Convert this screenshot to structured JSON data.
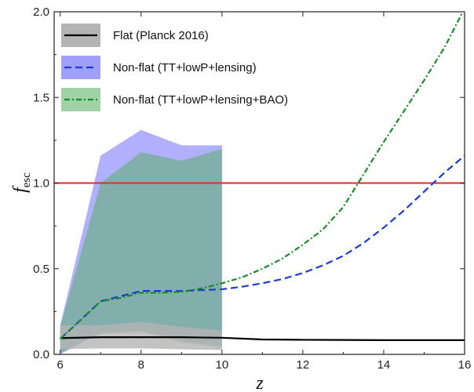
{
  "chart_data": {
    "type": "line",
    "xlabel": "z",
    "ylabel": "f",
    "ylabel_subscript": "esc",
    "xlim": [
      5.85,
      16
    ],
    "ylim": [
      0,
      2.0
    ],
    "x_ticks": [
      6,
      8,
      10,
      12,
      14,
      16
    ],
    "x_tick_labels": [
      "6",
      "8",
      "10",
      "12",
      "14",
      "16"
    ],
    "y_ticks": [
      0.0,
      0.5,
      1.0,
      1.5,
      2.0
    ],
    "y_tick_labels": [
      "0.0",
      "0.5",
      "1.0",
      "1.5",
      "2.0"
    ],
    "grid": false,
    "legend_position": "top-left",
    "reference_line": {
      "y": 1.0,
      "color": "#e8262a"
    },
    "bands": [
      {
        "series": "Non-flat (TT+lowP+lensing)",
        "color": "#8f8ffb",
        "opacity": 0.7,
        "x": [
          6,
          7,
          8,
          9,
          10
        ],
        "upper": [
          0.17,
          1.16,
          1.31,
          1.22,
          1.22
        ],
        "lower": [
          0.0,
          0.13,
          0.14,
          0.08,
          0.05
        ]
      },
      {
        "series": "Non-flat (TT+lowP+lensing+BAO)",
        "color": "#5cae6a",
        "opacity": 0.55,
        "x": [
          6,
          7,
          8,
          9,
          10
        ],
        "upper": [
          0.16,
          1.0,
          1.18,
          1.13,
          1.2
        ],
        "lower": [
          0.01,
          0.12,
          0.13,
          0.07,
          0.04
        ]
      },
      {
        "series": "Flat (Planck 2016)",
        "color": "#b4b4b4",
        "opacity": 0.8,
        "x": [
          6,
          7,
          8,
          9,
          10
        ],
        "upper": [
          0.17,
          0.17,
          0.19,
          0.16,
          0.14
        ],
        "lower": [
          0.03,
          0.035,
          0.035,
          0.03,
          0.025
        ]
      }
    ],
    "series": [
      {
        "name": "Flat (Planck 2016)",
        "color": "#000000",
        "style": "solid",
        "x": [
          6,
          7,
          8,
          9,
          10,
          11,
          12,
          13,
          14,
          15,
          16
        ],
        "y": [
          0.095,
          0.1,
          0.1,
          0.1,
          0.097,
          0.087,
          0.085,
          0.084,
          0.083,
          0.083,
          0.083
        ]
      },
      {
        "name": "Non-flat (TT+lowP+lensing)",
        "color": "#1a3ad6",
        "style": "dashed",
        "x": [
          6,
          6.5,
          7,
          7.5,
          8,
          8.5,
          9,
          9.5,
          10,
          10.5,
          11,
          11.5,
          12,
          12.5,
          13,
          13.5,
          14,
          14.5,
          15,
          15.5,
          16
        ],
        "y": [
          0.09,
          0.2,
          0.31,
          0.34,
          0.37,
          0.37,
          0.37,
          0.375,
          0.38,
          0.395,
          0.415,
          0.44,
          0.475,
          0.52,
          0.575,
          0.65,
          0.74,
          0.84,
          0.95,
          1.06,
          1.16
        ]
      },
      {
        "name": "Non-flat (TT+lowP+lensing+BAO)",
        "color": "#1c8a2a",
        "style": "dashdot",
        "x": [
          6,
          6.5,
          7,
          7.5,
          8,
          8.5,
          9,
          9.5,
          10,
          10.5,
          11,
          11.5,
          12,
          12.5,
          13,
          13.5,
          14,
          14.5,
          15,
          15.5,
          16
        ],
        "y": [
          0.09,
          0.2,
          0.31,
          0.33,
          0.36,
          0.36,
          0.365,
          0.385,
          0.415,
          0.45,
          0.5,
          0.56,
          0.64,
          0.73,
          0.86,
          1.05,
          1.24,
          1.42,
          1.6,
          1.79,
          2.02
        ]
      }
    ],
    "legend": [
      {
        "label": "Flat (Planck 2016)",
        "line_color": "#000000",
        "line_style": "solid",
        "patch_color": "#b4b4b4"
      },
      {
        "label": "Non-flat (TT+lowP+lensing)",
        "line_color": "#1a3ad6",
        "line_style": "dashed",
        "patch_color": "#a0a0fb"
      },
      {
        "label": "Non-flat (TT+lowP+lensing+BAO)",
        "line_color": "#1c8a2a",
        "line_style": "dashdot",
        "patch_color": "#9fd3a6"
      }
    ]
  }
}
